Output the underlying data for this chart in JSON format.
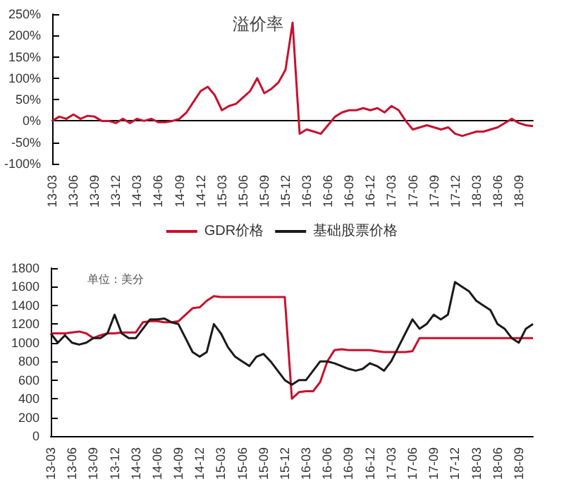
{
  "chart_data": [
    {
      "type": "line",
      "title": "溢价率",
      "categories": [
        "13-03",
        null,
        null,
        "13-06",
        null,
        null,
        "13-09",
        null,
        null,
        "13-12",
        null,
        null,
        "14-03",
        null,
        null,
        "14-06",
        null,
        null,
        "14-09",
        null,
        null,
        "14-12",
        null,
        null,
        "15-03",
        null,
        null,
        "15-06",
        null,
        null,
        "15-09",
        null,
        null,
        "15-12",
        null,
        null,
        "16-03",
        null,
        null,
        "16-06",
        null,
        null,
        "16-09",
        null,
        null,
        "16-12",
        null,
        null,
        "17-03",
        null,
        null,
        "17-06",
        null,
        null,
        "17-09",
        null,
        null,
        "17-12",
        null,
        null,
        "18-03",
        null,
        null,
        "18-06",
        null,
        null,
        "18-09",
        null,
        null
      ],
      "series": [
        {
          "color": "#c8102e",
          "values": [
            0,
            10,
            5,
            15,
            5,
            12,
            10,
            0,
            0,
            -5,
            5,
            -5,
            5,
            0,
            5,
            -3,
            -3,
            0,
            5,
            20,
            45,
            70,
            80,
            60,
            25,
            35,
            40,
            55,
            70,
            100,
            65,
            75,
            90,
            120,
            230,
            -30,
            -20,
            -25,
            -30,
            -10,
            10,
            20,
            25,
            25,
            30,
            25,
            30,
            20,
            35,
            25,
            0,
            -20,
            -15,
            -10,
            -15,
            -20,
            -15,
            -30,
            -35,
            -30,
            -25,
            -25,
            -20,
            -15,
            -5,
            5,
            -5,
            -10,
            -12
          ]
        }
      ],
      "ylim": [
        -100,
        250
      ],
      "yticks": [
        {
          "value": -100,
          "label": "-100%"
        },
        {
          "value": -50,
          "label": "-50%"
        },
        {
          "value": 0,
          "label": "0%"
        },
        {
          "value": 50,
          "label": "50%"
        },
        {
          "value": 100,
          "label": "100%"
        },
        {
          "value": 150,
          "label": "150%"
        },
        {
          "value": 200,
          "label": "200%"
        },
        {
          "value": 250,
          "label": "250%"
        }
      ],
      "legend": false,
      "marker": "none"
    },
    {
      "type": "line",
      "annotations": [
        "单位：美分"
      ],
      "categories": [
        "13-03",
        null,
        null,
        "13-06",
        null,
        null,
        "13-09",
        null,
        null,
        "13-12",
        null,
        null,
        "14-03",
        null,
        null,
        "14-06",
        null,
        null,
        "14-09",
        null,
        null,
        "14-12",
        null,
        null,
        "15-03",
        null,
        null,
        "15-06",
        null,
        null,
        "15-09",
        null,
        null,
        "15-12",
        null,
        null,
        "16-03",
        null,
        null,
        "16-06",
        null,
        null,
        "16-09",
        null,
        null,
        "16-12",
        null,
        null,
        "17-03",
        null,
        null,
        "17-06",
        null,
        null,
        "17-09",
        null,
        null,
        "17-12",
        null,
        null,
        "18-03",
        null,
        null,
        "18-06",
        null,
        null,
        "18-09",
        null,
        null
      ],
      "series": [
        {
          "name": "GDR价格",
          "color": "#c8102e",
          "values": [
            1100,
            1100,
            1100,
            1110,
            1120,
            1100,
            1050,
            1080,
            1100,
            1100,
            1110,
            1110,
            1110,
            1220,
            1230,
            1230,
            1220,
            1220,
            1230,
            1300,
            1370,
            1380,
            1450,
            1500,
            1490,
            1490,
            1490,
            1490,
            1490,
            1490,
            1490,
            1490,
            1490,
            1490,
            400,
            470,
            480,
            480,
            580,
            800,
            920,
            930,
            920,
            920,
            920,
            920,
            910,
            900,
            900,
            900,
            900,
            910,
            1050,
            1050,
            1050,
            1050,
            1050,
            1050,
            1050,
            1050,
            1050,
            1050,
            1050,
            1050,
            1050,
            1050,
            1050,
            1050,
            1050
          ]
        },
        {
          "name": "基础股票价格",
          "color": "#1a1a1a",
          "values": [
            1100,
            1000,
            1080,
            1000,
            980,
            1000,
            1050,
            1050,
            1100,
            1300,
            1100,
            1050,
            1050,
            1150,
            1250,
            1250,
            1260,
            1220,
            1200,
            1050,
            900,
            850,
            900,
            1200,
            1100,
            950,
            850,
            800,
            750,
            850,
            880,
            800,
            700,
            600,
            550,
            600,
            600,
            700,
            800,
            800,
            780,
            750,
            720,
            700,
            720,
            780,
            750,
            700,
            800,
            950,
            1100,
            1250,
            1150,
            1200,
            1300,
            1250,
            1300,
            1650,
            1600,
            1550,
            1450,
            1400,
            1350,
            1200,
            1150,
            1050,
            1000,
            1150,
            1200
          ]
        }
      ],
      "ylim": [
        0,
        1800
      ],
      "yticks": [
        0,
        200,
        400,
        600,
        800,
        1000,
        1200,
        1400,
        1600,
        1800
      ],
      "grid": false,
      "legend": "top",
      "marker": "none"
    }
  ]
}
